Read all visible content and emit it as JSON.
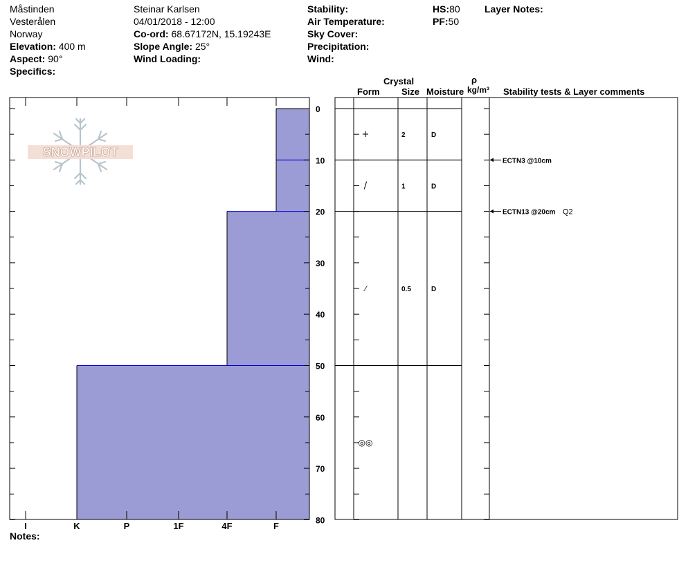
{
  "header": {
    "col1": {
      "location": "Måstinden",
      "region": "Vesterålen",
      "country": "Norway",
      "elevation_label": "Elevation:",
      "elevation_value": "400 m",
      "aspect_label": "Aspect:",
      "aspect_value": "90°",
      "specifics_label": "Specifics:"
    },
    "col2": {
      "observer": "Steinar Karlsen",
      "datetime": "04/01/2018 - 12:00",
      "coord_label": "Co-ord:",
      "coord_value": "68.67172N, 15.19243E",
      "slope_label": "Slope Angle:",
      "slope_value": "25°",
      "wind_loading_label": "Wind Loading:"
    },
    "col3": {
      "stability_label": "Stability:",
      "air_temp_label": "Air Temperature:",
      "sky_cover_label": "Sky Cover:",
      "precip_label": "Precipitation:",
      "wind_label": "Wind:"
    },
    "col4": {
      "hs_label": "HS:",
      "hs_value": "80",
      "pf_label": "PF:",
      "pf_value": "50"
    },
    "layer_notes_label": "Layer Notes:"
  },
  "logo": {
    "text": "SNOWPILOT"
  },
  "table_headers": {
    "crystal": "Crystal",
    "form": "Form",
    "size": "Size",
    "moisture": "Moisture",
    "rho": "ρ",
    "density_unit": "kg/m³",
    "comments": "Stability tests & Layer comments"
  },
  "notes_label": "Notes:",
  "colors": {
    "fill": "#9b9bd6",
    "layer_line": "#0000cc"
  },
  "chart_data": {
    "type": "bar",
    "depth_axis": {
      "range": [
        0,
        80
      ],
      "tick_labels": [
        "0",
        "10",
        "20",
        "30",
        "40",
        "50",
        "60",
        "70",
        "80"
      ]
    },
    "hardness_axis": {
      "categories": [
        "I",
        "K",
        "P",
        "1F",
        "4F",
        "F"
      ],
      "direction": "right-to-left"
    },
    "layers": [
      {
        "top": 0,
        "bottom": 10,
        "hardness": "F",
        "form": "+",
        "size": "2",
        "moisture": "D"
      },
      {
        "top": 10,
        "bottom": 20,
        "hardness": "F",
        "form": "/",
        "size": "1",
        "moisture": "D"
      },
      {
        "top": 20,
        "bottom": 50,
        "hardness": "4F",
        "form": "/",
        "size": "0.5",
        "moisture": "D"
      },
      {
        "top": 50,
        "bottom": 80,
        "hardness": "K",
        "form": "◎◎",
        "size": "",
        "moisture": ""
      }
    ],
    "stability_tests": [
      {
        "depth": 10,
        "label": "ECTN3 @10cm",
        "extra": ""
      },
      {
        "depth": 20,
        "label": "ECTN13 @20cm",
        "extra": "Q2"
      }
    ]
  }
}
